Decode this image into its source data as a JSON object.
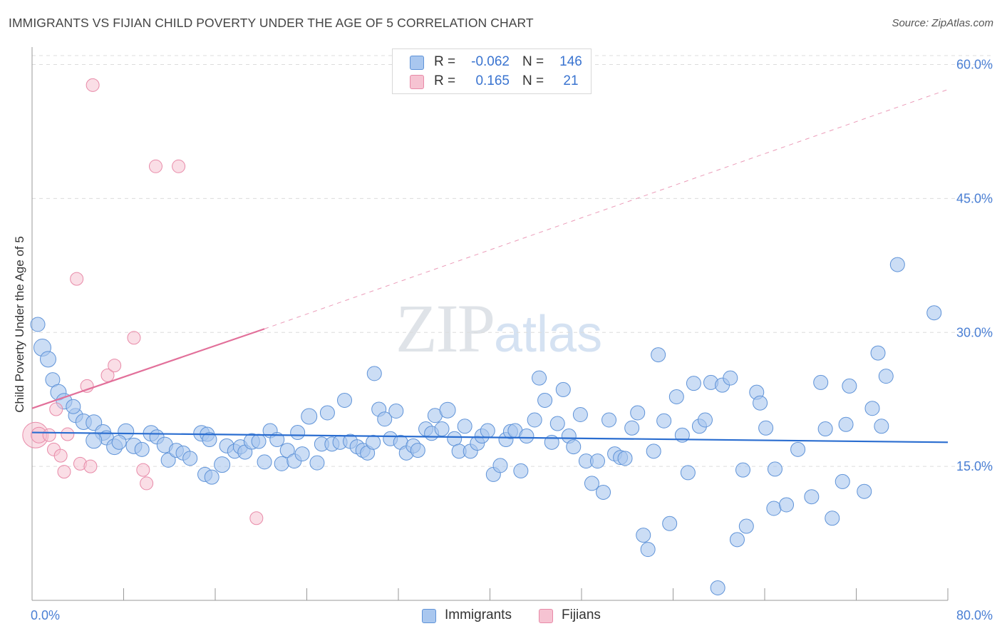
{
  "title": "IMMIGRANTS VS FIJIAN CHILD POVERTY UNDER THE AGE OF 5 CORRELATION CHART",
  "source": "Source: ZipAtlas.com",
  "watermark": {
    "zip": "ZIP",
    "atlas": "atlas"
  },
  "legend": {
    "rows": [
      {
        "r_label": "R =",
        "r_value": "-0.062",
        "n_label": "N =",
        "n_value": "146"
      },
      {
        "r_label": "R =",
        "r_value": "0.165",
        "n_label": "N =",
        "n_value": "21"
      }
    ]
  },
  "bottom_legend": {
    "immigrants": "Immigrants",
    "fijians": "Fijians"
  },
  "colors": {
    "immigrants_fill": "#a9c7ef",
    "immigrants_stroke": "#5f93d8",
    "immigrants_line": "#2a6dd0",
    "fijians_fill": "#f6c3d2",
    "fijians_stroke": "#e88aa8",
    "fijians_line": "#e2709a",
    "tick_label": "#4a7fd4",
    "grid": "#dcdcdc"
  },
  "chart_data": {
    "type": "scatter",
    "title": "IMMIGRANTS VS FIJIAN CHILD POVERTY UNDER THE AGE OF 5 CORRELATION CHART",
    "xlabel": "",
    "ylabel": "Child Poverty Under the Age of 5",
    "xlim": [
      0,
      80
    ],
    "ylim": [
      0,
      61
    ],
    "x_tick_labels": [
      "0.0%",
      "80.0%"
    ],
    "y_ticks": [
      15,
      30,
      45,
      60
    ],
    "y_tick_labels": [
      "15.0%",
      "30.0%",
      "45.0%",
      "60.0%"
    ],
    "grid": "horizontal dashed",
    "series": [
      {
        "name": "Immigrants",
        "stats": {
          "R": -0.062,
          "N": 146
        },
        "trend": {
          "x": [
            0,
            80
          ],
          "y": [
            18.8,
            17.7
          ],
          "style": "solid"
        },
        "points": [
          [
            0.5,
            30.9,
            10
          ],
          [
            0.9,
            28.3,
            12
          ],
          [
            1.4,
            27.0,
            11
          ],
          [
            1.8,
            24.7,
            10
          ],
          [
            2.3,
            23.3,
            11
          ],
          [
            2.8,
            22.3,
            11
          ],
          [
            3.8,
            20.7,
            10
          ],
          [
            4.5,
            20.0,
            11
          ],
          [
            3.6,
            21.7,
            10
          ],
          [
            5.4,
            19.9,
            11
          ],
          [
            6.2,
            18.8,
            11
          ],
          [
            6.5,
            18.2,
            10
          ],
          [
            5.4,
            17.9,
            11
          ],
          [
            7.2,
            17.2,
            11
          ],
          [
            8.2,
            18.9,
            11
          ],
          [
            7.6,
            17.7,
            10
          ],
          [
            8.9,
            17.3,
            11
          ],
          [
            9.6,
            16.9,
            10
          ],
          [
            10.4,
            18.7,
            11
          ],
          [
            10.9,
            18.3,
            10
          ],
          [
            11.6,
            17.4,
            11
          ],
          [
            11.9,
            15.7,
            10
          ],
          [
            12.6,
            16.8,
            10
          ],
          [
            13.2,
            16.5,
            10
          ],
          [
            13.8,
            15.9,
            10
          ],
          [
            14.8,
            18.7,
            11
          ],
          [
            15.3,
            18.6,
            10
          ],
          [
            15.5,
            18.0,
            10
          ],
          [
            15.1,
            14.1,
            10
          ],
          [
            15.7,
            13.8,
            10
          ],
          [
            16.6,
            15.2,
            11
          ],
          [
            17.0,
            17.3,
            10
          ],
          [
            17.7,
            16.7,
            10
          ],
          [
            18.2,
            17.2,
            10
          ],
          [
            18.6,
            16.6,
            10
          ],
          [
            19.2,
            17.8,
            11
          ],
          [
            19.8,
            17.8,
            10
          ],
          [
            20.3,
            15.5,
            10
          ],
          [
            20.8,
            19.0,
            10
          ],
          [
            21.4,
            18.0,
            10
          ],
          [
            21.8,
            15.3,
            10
          ],
          [
            22.3,
            16.8,
            10
          ],
          [
            22.9,
            15.6,
            10
          ],
          [
            23.2,
            18.8,
            10
          ],
          [
            23.6,
            16.4,
            10
          ],
          [
            24.2,
            20.6,
            11
          ],
          [
            24.9,
            15.4,
            10
          ],
          [
            25.3,
            17.5,
            10
          ],
          [
            25.8,
            21.0,
            10
          ],
          [
            26.2,
            17.5,
            10
          ],
          [
            26.9,
            17.7,
            10
          ],
          [
            27.3,
            22.4,
            10
          ],
          [
            27.8,
            17.8,
            10
          ],
          [
            28.4,
            17.2,
            10
          ],
          [
            28.9,
            16.8,
            10
          ],
          [
            29.3,
            16.5,
            10
          ],
          [
            29.8,
            17.7,
            10
          ],
          [
            29.9,
            25.4,
            10
          ],
          [
            30.3,
            21.4,
            10
          ],
          [
            30.8,
            20.3,
            10
          ],
          [
            31.3,
            18.1,
            10
          ],
          [
            31.8,
            21.2,
            10
          ],
          [
            32.2,
            17.7,
            10
          ],
          [
            32.7,
            16.5,
            10
          ],
          [
            33.3,
            17.3,
            10
          ],
          [
            33.7,
            16.8,
            10
          ],
          [
            34.4,
            19.2,
            10
          ],
          [
            34.9,
            18.7,
            10
          ],
          [
            35.2,
            20.7,
            10
          ],
          [
            35.8,
            19.2,
            10
          ],
          [
            36.3,
            21.3,
            11
          ],
          [
            36.9,
            18.1,
            10
          ],
          [
            37.3,
            16.7,
            10
          ],
          [
            37.8,
            19.5,
            10
          ],
          [
            38.3,
            16.7,
            10
          ],
          [
            38.9,
            17.6,
            10
          ],
          [
            39.3,
            18.4,
            10
          ],
          [
            39.8,
            19.0,
            10
          ],
          [
            40.3,
            14.1,
            10
          ],
          [
            40.9,
            15.1,
            10
          ],
          [
            41.4,
            18.0,
            10
          ],
          [
            41.8,
            18.9,
            10
          ],
          [
            42.2,
            19.0,
            10
          ],
          [
            42.7,
            14.5,
            10
          ],
          [
            43.2,
            18.4,
            10
          ],
          [
            43.9,
            20.2,
            10
          ],
          [
            44.3,
            24.9,
            10
          ],
          [
            44.8,
            22.4,
            10
          ],
          [
            45.4,
            17.7,
            10
          ],
          [
            45.9,
            19.8,
            10
          ],
          [
            46.4,
            23.6,
            10
          ],
          [
            46.9,
            18.4,
            10
          ],
          [
            47.3,
            17.2,
            10
          ],
          [
            47.9,
            20.8,
            10
          ],
          [
            48.4,
            15.6,
            10
          ],
          [
            48.9,
            13.1,
            10
          ],
          [
            49.4,
            15.6,
            10
          ],
          [
            49.9,
            12.1,
            10
          ],
          [
            50.4,
            20.2,
            10
          ],
          [
            50.9,
            16.4,
            10
          ],
          [
            51.4,
            16.0,
            10
          ],
          [
            51.8,
            15.9,
            10
          ],
          [
            52.4,
            19.3,
            10
          ],
          [
            52.9,
            21.0,
            10
          ],
          [
            53.4,
            7.3,
            10
          ],
          [
            53.8,
            5.7,
            10
          ],
          [
            54.3,
            16.7,
            10
          ],
          [
            54.7,
            27.5,
            10
          ],
          [
            55.2,
            20.1,
            10
          ],
          [
            55.7,
            8.6,
            10
          ],
          [
            56.3,
            22.8,
            10
          ],
          [
            56.8,
            18.5,
            10
          ],
          [
            57.3,
            14.3,
            10
          ],
          [
            57.8,
            24.3,
            10
          ],
          [
            58.3,
            19.5,
            10
          ],
          [
            58.8,
            20.2,
            10
          ],
          [
            59.3,
            24.4,
            10
          ],
          [
            59.9,
            1.4,
            10
          ],
          [
            60.3,
            24.1,
            10
          ],
          [
            61.0,
            24.9,
            10
          ],
          [
            61.6,
            6.8,
            10
          ],
          [
            62.1,
            14.6,
            10
          ],
          [
            62.4,
            8.3,
            10
          ],
          [
            63.3,
            23.3,
            10
          ],
          [
            63.6,
            22.1,
            10
          ],
          [
            64.1,
            19.3,
            10
          ],
          [
            64.8,
            10.3,
            10
          ],
          [
            64.9,
            14.7,
            10
          ],
          [
            65.9,
            10.7,
            10
          ],
          [
            66.9,
            16.9,
            10
          ],
          [
            68.1,
            11.6,
            10
          ],
          [
            68.9,
            24.4,
            10
          ],
          [
            69.3,
            19.2,
            10
          ],
          [
            69.9,
            9.2,
            10
          ],
          [
            70.8,
            13.3,
            10
          ],
          [
            71.1,
            19.7,
            10
          ],
          [
            71.4,
            24.0,
            10
          ],
          [
            72.7,
            12.2,
            10
          ],
          [
            73.4,
            21.5,
            10
          ],
          [
            73.9,
            27.7,
            10
          ],
          [
            74.2,
            19.5,
            10
          ],
          [
            74.6,
            25.1,
            10
          ],
          [
            75.6,
            37.6,
            10
          ],
          [
            78.8,
            32.2,
            10
          ]
        ]
      },
      {
        "name": "Fijians",
        "stats": {
          "R": 0.165,
          "N": 21
        },
        "trend": {
          "x": [
            0,
            20.3,
            80
          ],
          "y": [
            21.5,
            30.4,
            57.2
          ],
          "style": "solid to 20.3, dashed beyond"
        },
        "points": [
          [
            0.3,
            18.5,
            18
          ],
          [
            0.6,
            18.5,
            11
          ],
          [
            1.5,
            18.5,
            9
          ],
          [
            1.9,
            16.9,
            9
          ],
          [
            2.1,
            21.4,
            9
          ],
          [
            2.5,
            16.2,
            9
          ],
          [
            2.8,
            14.4,
            9
          ],
          [
            3.1,
            18.6,
            9
          ],
          [
            3.9,
            36.0,
            9
          ],
          [
            4.2,
            15.3,
            9
          ],
          [
            4.8,
            24.0,
            9
          ],
          [
            5.1,
            15.0,
            9
          ],
          [
            5.3,
            57.7,
            9
          ],
          [
            6.6,
            25.2,
            9
          ],
          [
            7.2,
            26.3,
            9
          ],
          [
            8.9,
            29.4,
            9
          ],
          [
            9.7,
            14.6,
            9
          ],
          [
            10.0,
            13.1,
            9
          ],
          [
            10.8,
            48.6,
            9
          ],
          [
            12.8,
            48.6,
            9
          ],
          [
            19.6,
            9.2,
            9
          ]
        ]
      }
    ]
  }
}
